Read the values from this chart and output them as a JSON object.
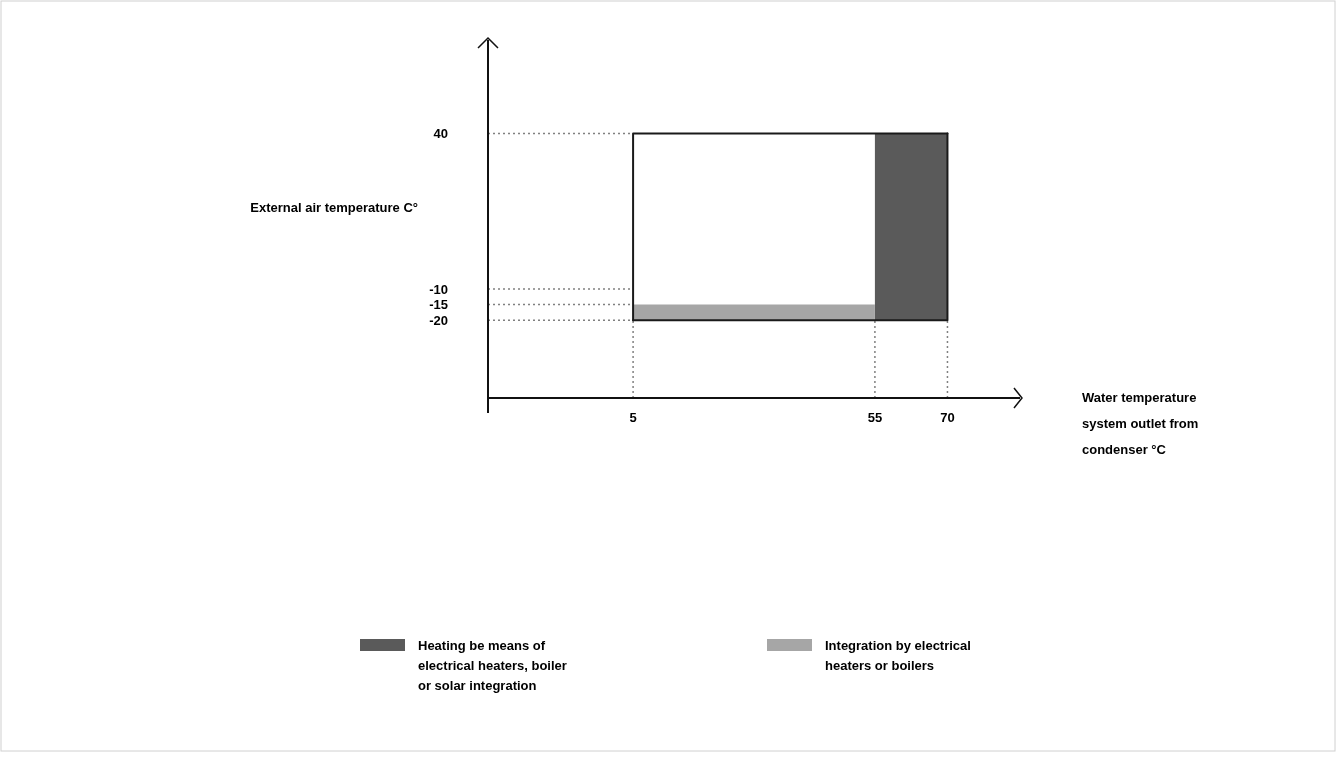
{
  "chart_data": {
    "type": "area",
    "xlabel": "Water temperature system outlet from condenser °C",
    "ylabel": "External air temperature C°",
    "xlim": [
      -25,
      85
    ],
    "ylim": [
      -45,
      70
    ],
    "xticks": [
      5,
      55,
      70
    ],
    "yticks": [
      40,
      -10,
      -15,
      -20
    ],
    "series": [
      {
        "name": "Heating be means of electrical heaters, boiler or solar integration",
        "color": "#5a5a5a",
        "x": [
          55,
          55,
          70,
          70
        ],
        "values": [
          -20,
          40,
          40,
          -20
        ]
      },
      {
        "name": "Integration by electrical heaters or boilers",
        "color": "#a6a6a6",
        "x": [
          5,
          5,
          55,
          55
        ],
        "values": [
          -20,
          -15,
          -15,
          -20
        ]
      },
      {
        "type": "line",
        "color": "#1a1a1a",
        "x": [
          5,
          5,
          70
        ],
        "values": [
          -20,
          40,
          40
        ]
      },
      {
        "type": "line",
        "color": "#1a1a1a",
        "x": [
          70,
          70,
          5
        ],
        "values": [
          40,
          -20,
          -20
        ]
      }
    ],
    "ref_lines": [
      {
        "axis": "y",
        "value": 40,
        "line_style": "dotted",
        "color": "#808080"
      },
      {
        "axis": "y",
        "value": -10,
        "line_style": "dotted",
        "color": "#808080"
      },
      {
        "axis": "y",
        "value": -15,
        "line_style": "dotted",
        "color": "#808080"
      },
      {
        "axis": "y",
        "value": -20,
        "line_style": "dotted",
        "color": "#808080"
      },
      {
        "axis": "x",
        "value": 5,
        "line_style": "dotted",
        "color": "#808080"
      },
      {
        "axis": "x",
        "value": 55,
        "line_style": "dotted",
        "color": "#808080"
      },
      {
        "axis": "x",
        "value": 70,
        "line_style": "dotted",
        "color": "#808080"
      }
    ],
    "grid": false,
    "legend": "bottom"
  }
}
